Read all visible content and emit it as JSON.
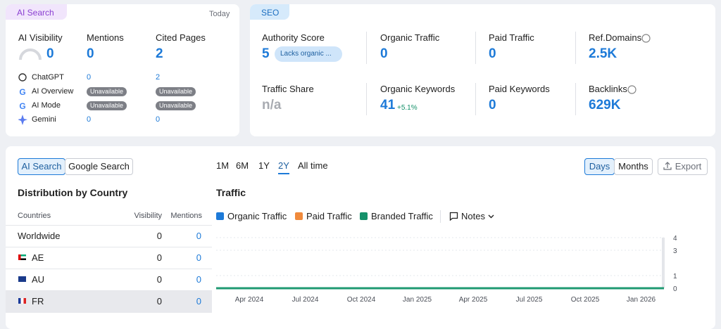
{
  "ai_search": {
    "tab": "AI Search",
    "date": "Today",
    "metrics": [
      {
        "label": "AI Visibility",
        "value": "0"
      },
      {
        "label": "Mentions",
        "value": "0"
      },
      {
        "label": "Cited Pages",
        "value": "2"
      }
    ],
    "rows": [
      {
        "name": "ChatGPT",
        "mentions": "0",
        "cited": "2"
      },
      {
        "name": "AI Overview",
        "mentions": "Unavailable",
        "cited": "Unavailable"
      },
      {
        "name": "AI Mode",
        "mentions": "Unavailable",
        "cited": "Unavailable"
      },
      {
        "name": "Gemini",
        "mentions": "0",
        "cited": "0"
      }
    ]
  },
  "seo": {
    "tab": "SEO",
    "metrics": [
      {
        "label": "Authority Score",
        "value": "5",
        "badge": "Lacks organic ..."
      },
      {
        "label": "Organic Traffic",
        "value": "0"
      },
      {
        "label": "Paid Traffic",
        "value": "0"
      },
      {
        "label": "Ref.Domains",
        "value": "2.5K"
      },
      {
        "label": "Traffic Share",
        "value": "n/a"
      },
      {
        "label": "Organic Keywords",
        "value": "41",
        "change": "+5.1%"
      },
      {
        "label": "Paid Keywords",
        "value": "0"
      },
      {
        "label": "Backlinks",
        "value": "629K"
      }
    ]
  },
  "source_toggle": [
    "AI Search",
    "Google Search"
  ],
  "ranges": [
    "1M",
    "6M",
    "1Y",
    "2Y",
    "All time"
  ],
  "active_range": 3,
  "view_toggle": [
    "Days",
    "Months"
  ],
  "export": "Export",
  "distribution": {
    "title": "Distribution by Country",
    "columns": [
      "Countries",
      "Visibility",
      "Mentions"
    ],
    "rows": [
      [
        "Worldwide",
        "0",
        "0"
      ],
      [
        "AE",
        "0",
        "0"
      ],
      [
        "AU",
        "0",
        "0"
      ],
      [
        "FR",
        "0",
        "0"
      ]
    ]
  },
  "traffic": {
    "title": "Traffic",
    "legend": [
      {
        "name": "Organic Traffic",
        "color": "#1d7ad8"
      },
      {
        "name": "Paid Traffic",
        "color": "#f08a3c"
      },
      {
        "name": "Branded Traffic",
        "color": "#15916a"
      }
    ],
    "notes": "Notes",
    "x": [
      "Apr 2024",
      "Jul 2024",
      "Oct 2024",
      "Jan 2025",
      "Apr 2025",
      "Jul 2025",
      "Oct 2025",
      "Jan 2026"
    ],
    "ylim": [
      0,
      4
    ],
    "yticks": [
      0,
      1,
      3,
      4
    ],
    "line_color": "#1f9a72"
  }
}
